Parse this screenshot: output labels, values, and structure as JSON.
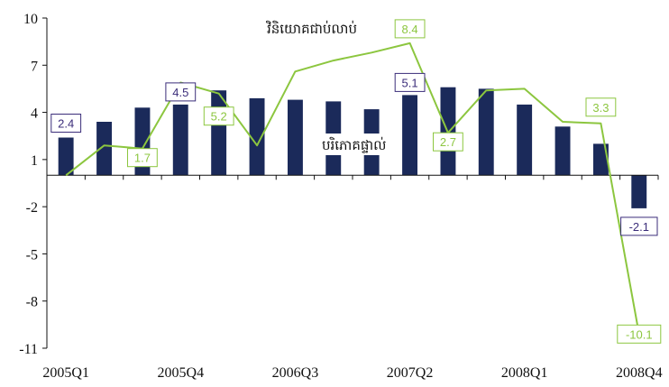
{
  "chart_data": {
    "type": "bar",
    "categories": [
      "2005Q1",
      "2005Q2",
      "2005Q3",
      "2005Q4",
      "2006Q1",
      "2006Q2",
      "2006Q3",
      "2006Q4",
      "2007Q1",
      "2007Q2",
      "2007Q3",
      "2007Q4",
      "2008Q1",
      "2008Q2",
      "2008Q3",
      "2008Q4"
    ],
    "x_tick_labels": [
      "2005Q1",
      "2005Q4",
      "2006Q3",
      "2007Q2",
      "2008Q1",
      "2008Q4"
    ],
    "ylim": [
      -11,
      10
    ],
    "y_ticks": [
      10,
      7,
      4,
      1,
      -2,
      -5,
      -8,
      -11
    ],
    "series": [
      {
        "name": "បរិភោគផ្ទាល់",
        "type": "bar",
        "color": "#1b2a5a",
        "values": [
          2.4,
          3.4,
          4.3,
          4.5,
          5.4,
          4.9,
          4.8,
          4.7,
          4.2,
          5.1,
          5.6,
          5.5,
          4.5,
          3.1,
          2.0,
          -2.1
        ],
        "data_labels": [
          {
            "index": 0,
            "text": "2.4"
          },
          {
            "index": 3,
            "text": "4.5"
          },
          {
            "index": 9,
            "text": "5.1"
          },
          {
            "index": 15,
            "text": "-2.1"
          }
        ],
        "label_color": "#3b2d7a"
      },
      {
        "name": "វិនិយោគជាប់លាប់",
        "type": "line",
        "color": "#8cc63f",
        "values": [
          0.0,
          1.9,
          1.7,
          5.9,
          5.2,
          1.9,
          6.6,
          7.3,
          7.8,
          8.4,
          2.7,
          5.4,
          5.5,
          3.4,
          3.3,
          -10.1
        ],
        "data_labels": [
          {
            "index": 2,
            "text": "1.7"
          },
          {
            "index": 4,
            "text": "5.2"
          },
          {
            "index": 9,
            "text": "8.4"
          },
          {
            "index": 10,
            "text": "2.7"
          },
          {
            "index": 14,
            "text": "3.3"
          },
          {
            "index": 15,
            "text": "-10.1"
          }
        ],
        "label_color": "#8cc63f"
      }
    ],
    "grid": false
  }
}
